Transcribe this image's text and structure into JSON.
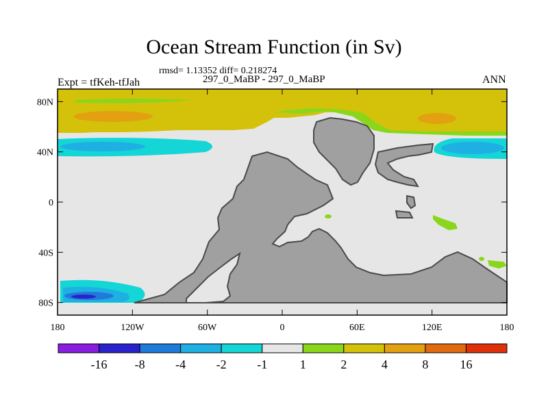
{
  "title": "Ocean Stream Function (in Sv)",
  "stats": "rmsd= 1.13352 diff= 0.218274",
  "subtitle": "297_0_MaBP - 297_0_MaBP",
  "left_label": "Expt = tfKeh-tfJah",
  "right_label": "ANN",
  "map": {
    "x_ticks": [
      "180",
      "120W",
      "60W",
      "0",
      "60E",
      "120E",
      "180"
    ],
    "y_ticks": [
      "80N",
      "40N",
      "0",
      "40S",
      "80S"
    ],
    "land_color": "#a0a0a0",
    "background_color": "#e6e6e6"
  },
  "colorbar": {
    "labels": [
      "-16",
      "-8",
      "-4",
      "-2",
      "-1",
      "1",
      "2",
      "4",
      "8",
      "16"
    ],
    "colors": [
      "#8a1ee0",
      "#2a22cc",
      "#1f7ad9",
      "#1fb0e3",
      "#14d6d6",
      "#e6e6e6",
      "#8ad61a",
      "#d4c20a",
      "#e3a010",
      "#e06a10",
      "#e0300a"
    ]
  }
}
